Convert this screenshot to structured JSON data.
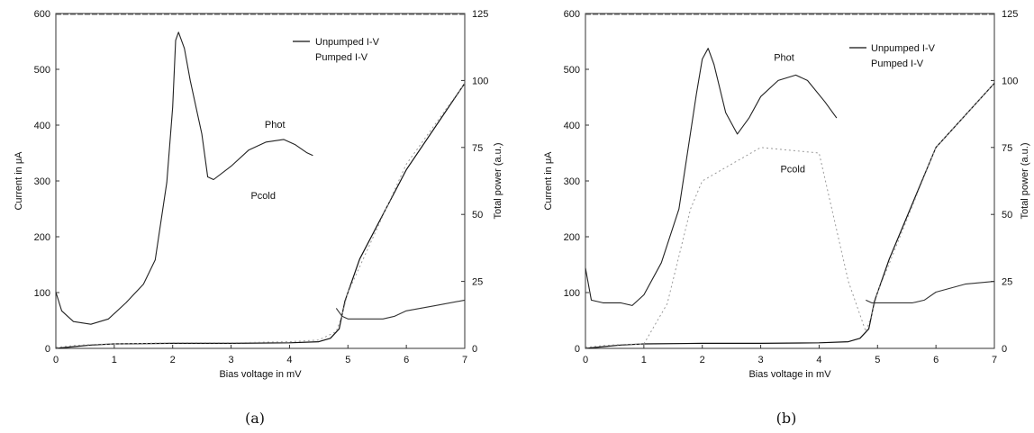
{
  "chart_data": [
    {
      "type": "line",
      "panel_label": "(a)",
      "xlabel": "Bias voltage in mV",
      "ylabel": "Current in μA",
      "y2label": "Total power (a.u.)",
      "xlim": [
        0,
        7
      ],
      "ylim": [
        0,
        600
      ],
      "y2lim": [
        0,
        125
      ],
      "x_ticks": [
        "0",
        "1",
        "2",
        "3",
        "4",
        "5",
        "6",
        "7"
      ],
      "y_ticks": [
        "0",
        "100",
        "200",
        "300",
        "400",
        "500",
        "600"
      ],
      "y2_ticks": [
        "0",
        "25",
        "50",
        "75",
        "100",
        "125"
      ],
      "legend": [
        "Unpumped I-V",
        "Pumped I-V"
      ],
      "legend_position": "top-right",
      "annotations": [
        {
          "text": "Phot",
          "x": 3.75,
          "y": 395
        },
        {
          "text": "Pcold",
          "x": 3.55,
          "y": 268
        }
      ],
      "series": [
        {
          "name": "Unpumped I-V",
          "axis": "left",
          "x": [
            0,
            0.3,
            0.6,
            1.0,
            2.0,
            3.0,
            4.0,
            4.5,
            4.7,
            4.85,
            4.95,
            5.2,
            6.0,
            7.0
          ],
          "y": [
            0,
            3,
            6,
            8,
            9,
            9,
            10,
            12,
            18,
            35,
            85,
            160,
            320,
            475
          ]
        },
        {
          "name": "Pumped I-V",
          "axis": "left",
          "x": [
            0,
            0.3,
            0.6,
            1.0,
            1.5,
            2.0,
            3.0,
            4.0,
            4.5,
            4.8,
            4.9,
            5.0,
            6.0,
            7.0
          ],
          "y": [
            2,
            5,
            7,
            8,
            9,
            10,
            10,
            12,
            15,
            30,
            60,
            100,
            330,
            475
          ]
        },
        {
          "name": "Phot",
          "axis": "right",
          "x": [
            0,
            0.1,
            0.3,
            0.6,
            0.9,
            1.2,
            1.5,
            1.7,
            1.9,
            2.0,
            2.05,
            2.1,
            2.2,
            2.3,
            2.5,
            2.6,
            2.7,
            3.0,
            3.3,
            3.6,
            3.9,
            4.1,
            4.3,
            4.4
          ],
          "y": [
            21,
            14,
            10,
            9,
            11,
            17,
            24,
            33,
            62,
            90,
            115,
            118,
            112,
            100,
            80,
            64,
            63,
            68,
            74,
            77,
            78,
            76,
            73,
            72
          ]
        },
        {
          "name": "Pcold",
          "axis": "right",
          "x": [
            4.8,
            4.9,
            5.0,
            5.3,
            5.6,
            5.8,
            6.0,
            6.5,
            7.0
          ],
          "y": [
            15,
            12,
            11,
            11,
            11,
            12,
            14,
            16,
            18
          ]
        }
      ]
    },
    {
      "type": "line",
      "panel_label": "(b)",
      "xlabel": "Bias voltage in mV",
      "ylabel": "Current in μA",
      "y2label": "Total power (a.u.)",
      "xlim": [
        0,
        7
      ],
      "ylim": [
        0,
        600
      ],
      "y2lim": [
        0,
        125
      ],
      "x_ticks": [
        "0",
        "1",
        "2",
        "3",
        "4",
        "5",
        "6",
        "7"
      ],
      "y_ticks": [
        "0",
        "100",
        "200",
        "300",
        "400",
        "500",
        "600"
      ],
      "y2_ticks": [
        "0",
        "25",
        "50",
        "75",
        "100",
        "125"
      ],
      "legend": [
        "Unpumped I-V",
        "Pumped I-V"
      ],
      "legend_position": "top-right",
      "annotations": [
        {
          "text": "Phot",
          "x": 3.4,
          "y": 515
        },
        {
          "text": "Pcold",
          "x": 3.55,
          "y": 315
        }
      ],
      "series": [
        {
          "name": "Unpumped I-V",
          "axis": "left",
          "x": [
            0,
            0.3,
            0.6,
            1.0,
            2.0,
            3.0,
            4.0,
            4.5,
            4.7,
            4.85,
            4.95,
            5.2,
            6.0,
            7.0
          ],
          "y": [
            0,
            3,
            6,
            8,
            9,
            9,
            10,
            12,
            18,
            35,
            85,
            160,
            360,
            475
          ]
        },
        {
          "name": "Pumped I-V",
          "axis": "left",
          "x": [
            0,
            0.3,
            0.6,
            1.0,
            1.4,
            1.8,
            2.0,
            2.5,
            3.0,
            4.0,
            4.5,
            4.8,
            4.9,
            5.0,
            6.0,
            7.0
          ],
          "y": [
            2,
            5,
            7,
            8,
            80,
            250,
            300,
            330,
            360,
            350,
            120,
            30,
            60,
            100,
            360,
            475
          ]
        },
        {
          "name": "Phot",
          "axis": "right",
          "x": [
            0,
            0.1,
            0.3,
            0.6,
            0.8,
            1.0,
            1.3,
            1.6,
            1.9,
            2.0,
            2.1,
            2.2,
            2.4,
            2.6,
            2.8,
            3.0,
            3.3,
            3.6,
            3.8,
            4.1,
            4.3
          ],
          "y": [
            30,
            18,
            17,
            17,
            16,
            20,
            32,
            52,
            95,
            108,
            112,
            106,
            88,
            80,
            86,
            94,
            100,
            102,
            100,
            92,
            86
          ]
        },
        {
          "name": "Pcold",
          "axis": "right",
          "x": [
            4.8,
            4.9,
            5.0,
            5.3,
            5.6,
            5.8,
            6.0,
            6.5,
            7.0
          ],
          "y": [
            18,
            17,
            17,
            17,
            17,
            18,
            21,
            24,
            25
          ]
        }
      ]
    }
  ]
}
